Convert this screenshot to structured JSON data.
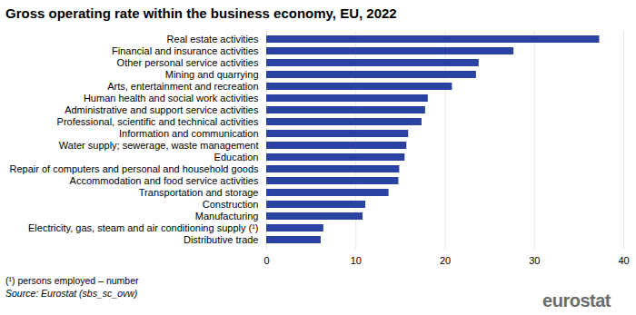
{
  "chart_data": {
    "type": "bar",
    "orientation": "horizontal",
    "title": "Gross operating rate within the business economy, EU, 2022",
    "categories": [
      "Real estate activities",
      "Financial and insurance activities",
      "Other personal service activities",
      "Mining and quarrying",
      "Arts, entertainment and recreation",
      "Human health and social work activities",
      "Administrative and support service activities",
      "Professional, scientific and technical activities",
      "Information and communication",
      "Water supply; sewerage, waste management",
      "Education",
      "Repair of computers and personal and household goods",
      "Accommodation and food service activities",
      "Transportation and storage",
      "Construction",
      "Manufacturing",
      "Electricity, gas, steam and air conditioning supply (¹)",
      "Distributive trade"
    ],
    "values": [
      37.3,
      27.7,
      23.8,
      23.5,
      20.8,
      18.1,
      17.8,
      17.4,
      15.9,
      15.7,
      15.5,
      14.9,
      14.8,
      13.7,
      11.1,
      10.8,
      6.4,
      6.1
    ],
    "color": "#2a43a3",
    "xlim": [
      0,
      40
    ],
    "xticks": [
      0,
      10,
      20,
      30,
      40
    ],
    "grid": true,
    "notes": [
      "(¹) persons employed – number",
      "Source: Eurostat (sbs_sc_ovw)"
    ],
    "logo": "eurostat"
  }
}
